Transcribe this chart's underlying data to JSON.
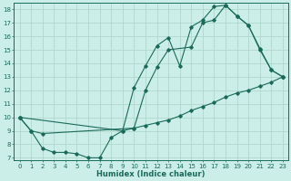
{
  "xlabel": "Humidex (Indice chaleur)",
  "bg_color": "#cceee8",
  "grid_color": "#b0d8cc",
  "line_color": "#1a6a5a",
  "xlim": [
    -0.5,
    23.5
  ],
  "ylim": [
    6.8,
    18.5
  ],
  "xticks": [
    0,
    1,
    2,
    3,
    4,
    5,
    6,
    7,
    8,
    9,
    10,
    11,
    12,
    13,
    14,
    15,
    16,
    17,
    18,
    19,
    20,
    21,
    22,
    23
  ],
  "yticks": [
    7,
    8,
    9,
    10,
    11,
    12,
    13,
    14,
    15,
    16,
    17,
    18
  ],
  "series": [
    {
      "x": [
        0,
        1,
        2,
        3,
        4,
        5,
        6,
        7,
        8,
        9,
        10,
        11,
        12,
        13,
        14,
        15,
        16,
        17,
        18,
        19,
        20,
        21,
        22,
        23
      ],
      "y": [
        10,
        9,
        7.7,
        7.4,
        7.4,
        7.3,
        7.0,
        7.0,
        8.5,
        9.0,
        12.2,
        13.8,
        15.3,
        15.9,
        13.8,
        16.7,
        17.2,
        18.2,
        18.3,
        17.5,
        16.8,
        15.1,
        13.5,
        13.0
      ]
    },
    {
      "x": [
        0,
        1,
        2,
        10,
        11,
        12,
        13,
        14,
        15,
        16,
        17,
        18,
        19,
        20,
        21,
        22,
        23
      ],
      "y": [
        10,
        9,
        8.8,
        9.2,
        9.4,
        9.6,
        9.8,
        10.1,
        10.5,
        10.8,
        11.1,
        11.5,
        11.8,
        12.0,
        12.3,
        12.6,
        13.0
      ]
    },
    {
      "x": [
        0,
        9,
        10,
        11,
        12,
        13,
        15,
        16,
        17,
        18,
        19,
        20,
        21,
        22,
        23
      ],
      "y": [
        10,
        9.0,
        9.2,
        12.0,
        13.7,
        15.0,
        15.2,
        17.0,
        17.2,
        18.3,
        17.5,
        16.8,
        15.0,
        13.5,
        13.0
      ]
    }
  ]
}
